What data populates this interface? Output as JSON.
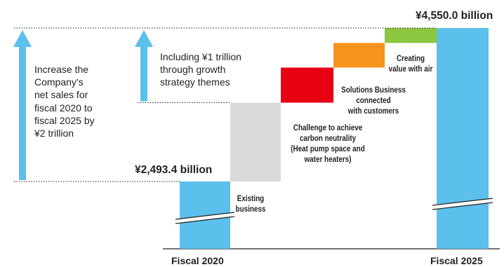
{
  "chart_data": {
    "type": "waterfall",
    "unit": "¥ billion",
    "start": {
      "label": "Fiscal 2020",
      "value": 2493.4,
      "value_label": "¥2,493.4 billion"
    },
    "end": {
      "label": "Fiscal 2025",
      "value": 4550.0,
      "value_label": "¥4,550.0 billion"
    },
    "steps": [
      {
        "label": "Existing business",
        "lines": [
          "Existing",
          "business"
        ],
        "color": "#d9d9d9",
        "value": 1056.6
      },
      {
        "label": "Challenge to achieve carbon neutrality (Heat pump space and water heaters)",
        "lines": [
          "Challenge to achieve",
          "carbon neutrality",
          "(Heat pump space and",
          "water heaters)"
        ],
        "color": "#e60012",
        "value": 470
      },
      {
        "label": "Solutions Business connected with customers",
        "lines": [
          "Solutions Business",
          "connected",
          "with customers"
        ],
        "color": "#f7941d",
        "value": 330
      },
      {
        "label": "Creating value with air",
        "lines": [
          "Creating",
          "value with air"
        ],
        "color": "#8dc63f",
        "value": 200
      }
    ],
    "bar_color": "#5bc0eb",
    "annotations": [
      {
        "id": "total-increase",
        "lines": [
          "Increase the",
          "Company's",
          "net sales for",
          "fiscal 2020 to",
          "fiscal 2025 by",
          "¥2 trillion"
        ]
      },
      {
        "id": "growth-themes",
        "lines": [
          "Including ¥1 trillion",
          "through growth",
          "strategy themes"
        ]
      }
    ]
  }
}
